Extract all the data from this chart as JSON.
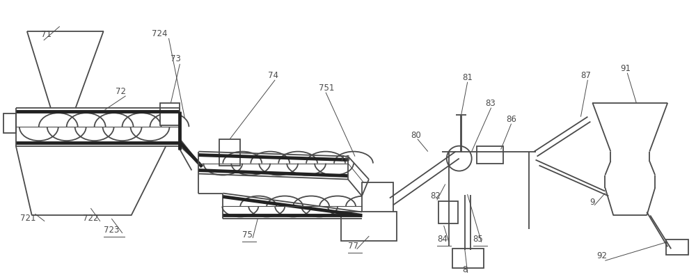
{
  "bg_color": "#ffffff",
  "line_color": "#4a4a4a",
  "lw": 1.3
}
